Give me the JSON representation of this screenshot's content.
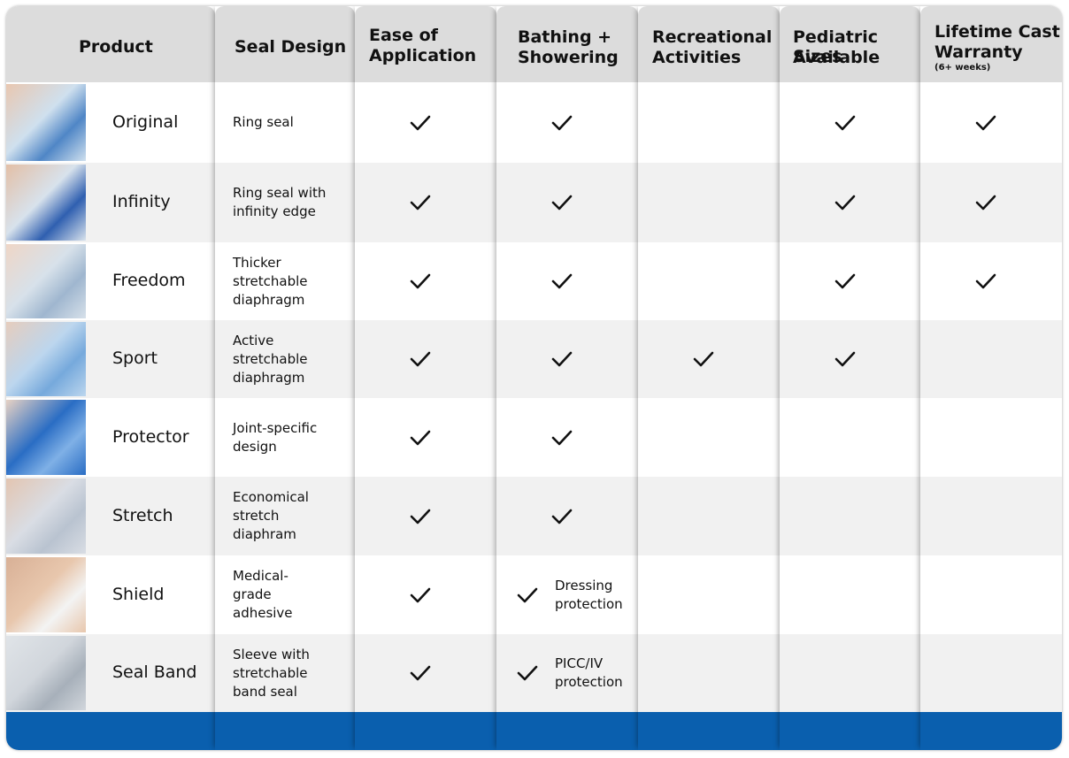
{
  "headers": {
    "product": "Product",
    "seal_design": "Seal Design",
    "ease_1": "Ease of",
    "ease_2": "Application",
    "bathing_1": "Bathing +",
    "bathing_2": "Showering",
    "rec_1": "Recreational",
    "rec_2": "Activities",
    "ped_1": "Pediatric Sizes",
    "ped_2": "Available",
    "warranty_1": "Lifetime Cast",
    "warranty_2": "Warranty",
    "warranty_sub": "(6+ weeks)"
  },
  "rows": [
    {
      "name": "Original",
      "seal": [
        "Ring seal"
      ],
      "ease": true,
      "bath": true,
      "bath_note": [],
      "rec": false,
      "ped": true,
      "warranty": true
    },
    {
      "name": "Infinity",
      "seal": [
        "Ring seal with",
        "infinity edge"
      ],
      "ease": true,
      "bath": true,
      "bath_note": [],
      "rec": false,
      "ped": true,
      "warranty": true
    },
    {
      "name": "Freedom",
      "seal": [
        "Thicker",
        "stretchable",
        "diaphragm"
      ],
      "ease": true,
      "bath": true,
      "bath_note": [],
      "rec": false,
      "ped": true,
      "warranty": true
    },
    {
      "name": "Sport",
      "seal": [
        "Active",
        "stretchable",
        "diaphragm"
      ],
      "ease": true,
      "bath": true,
      "bath_note": [],
      "rec": true,
      "ped": true,
      "warranty": false
    },
    {
      "name": "Protector",
      "seal": [
        "Joint-specific",
        "design"
      ],
      "ease": true,
      "bath": true,
      "bath_note": [],
      "rec": false,
      "ped": false,
      "warranty": false
    },
    {
      "name": "Stretch",
      "seal": [
        "Economical",
        "stretch",
        "diaphram"
      ],
      "ease": true,
      "bath": true,
      "bath_note": [],
      "rec": false,
      "ped": false,
      "warranty": false
    },
    {
      "name": "Shield",
      "seal": [
        "Medical-",
        "grade",
        "adhesive"
      ],
      "ease": true,
      "bath": true,
      "bath_note": [
        "Dressing",
        "protection"
      ],
      "rec": false,
      "ped": false,
      "warranty": false
    },
    {
      "name": "Seal Band",
      "seal": [
        "Sleeve with",
        "stretchable",
        "band seal"
      ],
      "ease": true,
      "bath": true,
      "bath_note": [
        "PICC/IV",
        "protection"
      ],
      "rec": false,
      "ped": false,
      "warranty": false
    }
  ],
  "colors": {
    "header_bg": "#dcdcdc",
    "row_alt_bg": "#f1f1f1",
    "footer_blue": "#0a5fae",
    "check": "#111111"
  },
  "icons": {
    "check": "check-icon"
  }
}
